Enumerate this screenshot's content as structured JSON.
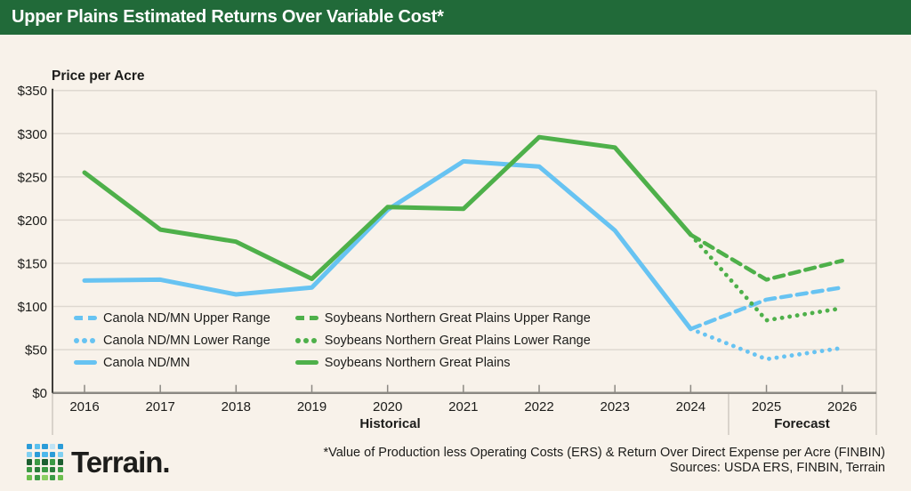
{
  "header": {
    "title": "Upper Plains Estimated Returns Over Variable Cost*"
  },
  "colors": {
    "header_bg": "#216a39",
    "background": "#f8f2ea",
    "canola_blue": "#67c3f2",
    "soybeans_green": "#4eb04a",
    "gridline": "#ded8d0",
    "axis_baseline": "#8c8983",
    "y_axis": "#3f3e3a"
  },
  "chart_data": {
    "type": "line",
    "title": "Upper Plains Estimated Returns Over Variable Cost*",
    "ylabel": "Price per Acre",
    "ylim": [
      0,
      350
    ],
    "y_tick_labels": [
      "$0",
      "$50",
      "$100",
      "$150",
      "$200",
      "$250",
      "$300",
      "$350"
    ],
    "x_min": 2016,
    "x_labels": [
      "2016",
      "2017",
      "2018",
      "2019",
      "2020",
      "2021",
      "2022",
      "2023",
      "2024",
      "2025",
      "2026"
    ],
    "grid": true,
    "sections": [
      {
        "label": "Historical",
        "from": 2016,
        "to": 2024
      },
      {
        "label": "Forecast",
        "from": 2025,
        "to": 2026
      }
    ],
    "series": [
      {
        "name": "Canola ND/MN",
        "color": "canola_blue",
        "style": "solid",
        "x": [
          2016,
          2017,
          2018,
          2019,
          2020,
          2021,
          2022,
          2023,
          2024
        ],
        "values": [
          130,
          131,
          114,
          122,
          212,
          268,
          262,
          188,
          74
        ]
      },
      {
        "name": "Canola ND/MN Upper Range",
        "color": "canola_blue",
        "style": "dashed",
        "x": [
          2024,
          2025,
          2026
        ],
        "values": [
          74,
          108,
          122
        ]
      },
      {
        "name": "Canola ND/MN Lower Range",
        "color": "canola_blue",
        "style": "dotted",
        "x": [
          2024,
          2025,
          2026
        ],
        "values": [
          74,
          39,
          52
        ]
      },
      {
        "name": "Soybeans Northern Great Plains",
        "color": "soybeans_green",
        "style": "solid",
        "x": [
          2016,
          2017,
          2018,
          2019,
          2020,
          2021,
          2022,
          2023,
          2024
        ],
        "values": [
          255,
          189,
          175,
          132,
          215,
          213,
          296,
          284,
          183
        ]
      },
      {
        "name": "Soybeans Northern Great Plains Upper Range",
        "color": "soybeans_green",
        "style": "dashed",
        "x": [
          2024,
          2025,
          2026
        ],
        "values": [
          183,
          131,
          153
        ]
      },
      {
        "name": "Soybeans Northern Great Plains Lower Range",
        "color": "soybeans_green",
        "style": "dotted",
        "x": [
          2024,
          2025,
          2026
        ],
        "values": [
          183,
          84,
          98
        ]
      }
    ]
  },
  "legend": {
    "items": [
      {
        "label": "Canola ND/MN Upper Range",
        "color": "canola_blue",
        "style": "dashed"
      },
      {
        "label": "Canola ND/MN Lower Range",
        "color": "canola_blue",
        "style": "dotted"
      },
      {
        "label": "Canola ND/MN",
        "color": "canola_blue",
        "style": "solid"
      },
      {
        "label": "Soybeans Northern Great Plains Upper Range",
        "color": "soybeans_green",
        "style": "dashed"
      },
      {
        "label": "Soybeans Northern Great Plains Lower Range",
        "color": "soybeans_green",
        "style": "dotted"
      },
      {
        "label": "Soybeans Northern Great Plains",
        "color": "soybeans_green",
        "style": "solid"
      }
    ]
  },
  "footer": {
    "brand": "Terrain.",
    "footnote": "*Value of Production less Operating Costs (ERS) & Return Over Direct Expense per Acre (FINBIN)",
    "sources": "Sources: USDA ERS, FINBIN, Terrain"
  },
  "logo": {
    "grid": [
      "#2b9cd8",
      "#5bc1ee",
      "#2b9cd8",
      "#bfe3f5",
      "#2b9cd8",
      "#7fd0f2",
      "#2b9cd8",
      "#4db8ec",
      "#2b9cd8",
      "#7fd0f2",
      "#1c5f31",
      "#3b9a44",
      "#1c5f31",
      "#3b9a44",
      "#1c5f31",
      "#3b9a44",
      "#2a7d3a",
      "#3b9a44",
      "#2a7d3a",
      "#3b9a44",
      "#6cbf4d",
      "#3b9a44",
      "#8ccf63",
      "#3b9a44",
      "#6cbf4d"
    ]
  }
}
